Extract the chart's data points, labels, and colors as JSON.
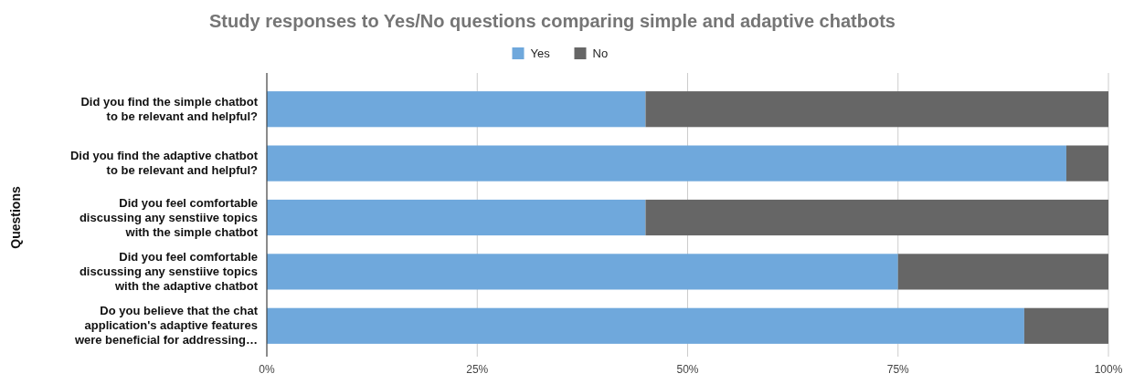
{
  "chart_data": {
    "type": "bar",
    "orientation": "horizontal",
    "stacked": true,
    "title": "Study responses to Yes/No questions comparing simple and adaptive chatbots",
    "ylabel": "Questions",
    "categories": [
      "Did you find the simple chatbot to be relevant and helpful?",
      "Did you find the adaptive chatbot to be relevant and helpful?",
      "Did you feel comfortable discussing any senstiive topics with the simple chatbot",
      "Did you feel comfortable discussing any senstiive topics with the adaptive chatbot",
      "Do you believe that the chat application's adaptive features were beneficial for addressing…"
    ],
    "series": [
      {
        "name": "Yes",
        "color": "#6fa8dc",
        "values": [
          45,
          95,
          45,
          75,
          90
        ]
      },
      {
        "name": "No",
        "color": "#666666",
        "values": [
          55,
          5,
          55,
          25,
          10
        ]
      }
    ],
    "xlim": [
      0,
      100
    ],
    "xticks": [
      {
        "value": 0,
        "label": "0%"
      },
      {
        "value": 25,
        "label": "25%"
      },
      {
        "value": 50,
        "label": "50%"
      },
      {
        "value": 75,
        "label": "75%"
      },
      {
        "value": 100,
        "label": "100%"
      }
    ],
    "grid": "x",
    "legend": "top"
  }
}
